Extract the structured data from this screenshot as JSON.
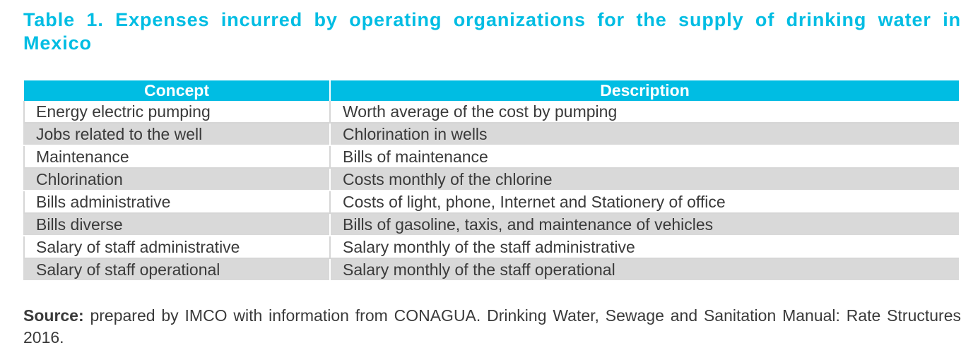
{
  "title": "Table 1. Expenses incurred by operating organizations for the supply of drinking water in Mexico",
  "table": {
    "headers": [
      "Concept",
      "Description"
    ],
    "rows": [
      [
        "Energy electric pumping",
        "Worth average of the cost by pumping"
      ],
      [
        "Jobs related to the well",
        "Chlorination in wells"
      ],
      [
        "Maintenance",
        "Bills of maintenance"
      ],
      [
        "Chlorination",
        "Costs monthly of the chlorine"
      ],
      [
        "Bills administrative",
        "Costs of light, phone, Internet and Stationery of office"
      ],
      [
        "Bills diverse",
        "Bills of gasoline, taxis, and maintenance of vehicles"
      ],
      [
        "Salary of staff administrative",
        "Salary monthly of the staff administrative"
      ],
      [
        "Salary of staff operational",
        "Salary monthly of the staff operational"
      ]
    ]
  },
  "source": {
    "label": "Source:",
    "text": " prepared by IMCO with information from CONAGUA. Drinking Water, Sewage and Sanitation Manual: Rate Structures 2016."
  },
  "colors": {
    "accent": "#00bde3",
    "stripe": "#d9d9d9",
    "text": "#3a3a3a"
  }
}
